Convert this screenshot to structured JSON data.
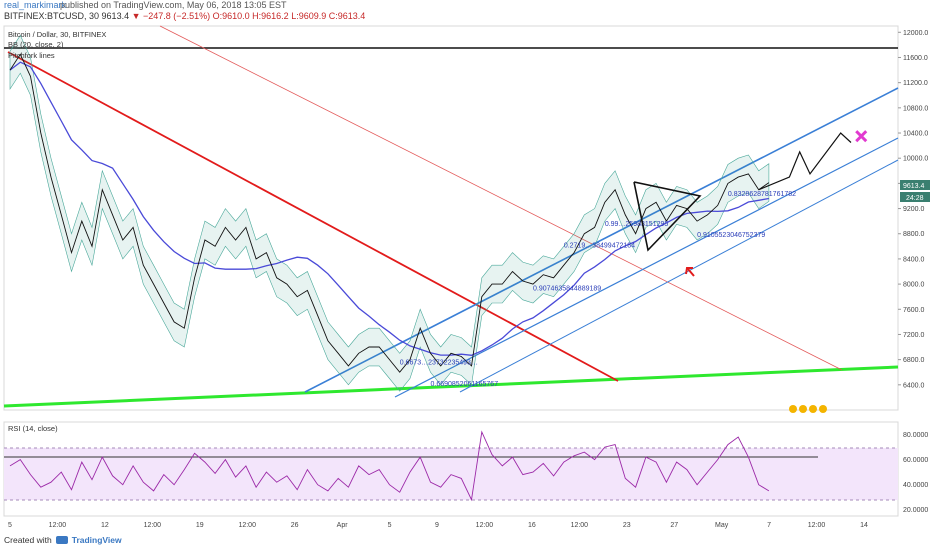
{
  "header": {
    "author": "real_markimark",
    "published": "published on TradingView.com, May 06, 2018 13:05 EST",
    "symbol": "BITFINEX:BTCUSD, 30",
    "last": "9613.4",
    "change": "−247.8 (−2.51%)",
    "open": "O:9610.0",
    "high": "H:9616.2",
    "low": "L:9609.9",
    "close": "C:9613.4"
  },
  "footer": {
    "created_with": "Created with",
    "brand": "TradingView"
  },
  "chart_data": {
    "type": "line",
    "title": "Bitcoin / Dollar, 30, BITFINEX",
    "indicator_bb": "BB (20, close, 2)",
    "indicator_hidden": "Pitchfork lines",
    "price_axis": {
      "ylim": [
        6000,
        12100
      ],
      "ticks": [
        "12000.0",
        "11600.0",
        "11200.0",
        "10800.0",
        "10400.0",
        "10000.0",
        "9600.0",
        "9200.0",
        "8800.0",
        "8400.0",
        "8000.0",
        "7600.0",
        "7200.0",
        "6800.0",
        "6400.0"
      ],
      "tick_values": [
        12000,
        11600,
        11200,
        10800,
        10400,
        10000,
        9600,
        9200,
        8800,
        8400,
        8000,
        7600,
        7200,
        6800,
        6400
      ],
      "current_price_label": "9613.4",
      "countdown_label": "24:28"
    },
    "rsi": {
      "title": "RSI (14, close)",
      "ylim": [
        15,
        90
      ],
      "ticks": [
        "80.0000",
        "60.0000",
        "40.0000",
        "20.0000"
      ],
      "tick_values": [
        80,
        60,
        40,
        20
      ],
      "upper_band": 70,
      "lower_band": 30
    },
    "time_axis": {
      "labels": [
        "5",
        "12:00",
        "12",
        "12:00",
        "19",
        "12:00",
        "26",
        "Apr",
        "5",
        "9",
        "12:00",
        "16",
        "12:00",
        "23",
        "27",
        "May",
        "7",
        "12:00",
        "14"
      ]
    },
    "price_series": [
      {
        "t": 0,
        "v": 11400
      },
      {
        "t": 1,
        "v": 11650
      },
      {
        "t": 2,
        "v": 11300
      },
      {
        "t": 3,
        "v": 10400
      },
      {
        "t": 4,
        "v": 9700
      },
      {
        "t": 5,
        "v": 9100
      },
      {
        "t": 6,
        "v": 8500
      },
      {
        "t": 7,
        "v": 9000
      },
      {
        "t": 8,
        "v": 8600
      },
      {
        "t": 9,
        "v": 9500
      },
      {
        "t": 10,
        "v": 9100
      },
      {
        "t": 11,
        "v": 8700
      },
      {
        "t": 12,
        "v": 8900
      },
      {
        "t": 13,
        "v": 8300
      },
      {
        "t": 14,
        "v": 8000
      },
      {
        "t": 15,
        "v": 7700
      },
      {
        "t": 16,
        "v": 7400
      },
      {
        "t": 17,
        "v": 7300
      },
      {
        "t": 18,
        "v": 8100
      },
      {
        "t": 19,
        "v": 8700
      },
      {
        "t": 20,
        "v": 8600
      },
      {
        "t": 21,
        "v": 8900
      },
      {
        "t": 22,
        "v": 8700
      },
      {
        "t": 23,
        "v": 8900
      },
      {
        "t": 24,
        "v": 8400
      },
      {
        "t": 25,
        "v": 8500
      },
      {
        "t": 26,
        "v": 8100
      },
      {
        "t": 27,
        "v": 8000
      },
      {
        "t": 28,
        "v": 7800
      },
      {
        "t": 29,
        "v": 7900
      },
      {
        "t": 30,
        "v": 7500
      },
      {
        "t": 31,
        "v": 7100
      },
      {
        "t": 32,
        "v": 6900
      },
      {
        "t": 33,
        "v": 6700
      },
      {
        "t": 34,
        "v": 6900
      },
      {
        "t": 35,
        "v": 7000
      },
      {
        "t": 36,
        "v": 7000
      },
      {
        "t": 37,
        "v": 6800
      },
      {
        "t": 38,
        "v": 6600
      },
      {
        "t": 39,
        "v": 6800
      },
      {
        "t": 40,
        "v": 7300
      },
      {
        "t": 41,
        "v": 6900
      },
      {
        "t": 42,
        "v": 6700
      },
      {
        "t": 43,
        "v": 6900
      },
      {
        "t": 44,
        "v": 6850
      },
      {
        "t": 45,
        "v": 6700
      },
      {
        "t": 46,
        "v": 7800
      },
      {
        "t": 47,
        "v": 8000
      },
      {
        "t": 48,
        "v": 8000
      },
      {
        "t": 49,
        "v": 8200
      },
      {
        "t": 50,
        "v": 8050
      },
      {
        "t": 51,
        "v": 8000
      },
      {
        "t": 52,
        "v": 8150
      },
      {
        "t": 53,
        "v": 8100
      },
      {
        "t": 54,
        "v": 8300
      },
      {
        "t": 55,
        "v": 8500
      },
      {
        "t": 56,
        "v": 8800
      },
      {
        "t": 57,
        "v": 8900
      },
      {
        "t": 58,
        "v": 9300
      },
      {
        "t": 59,
        "v": 9500
      },
      {
        "t": 60,
        "v": 9100
      },
      {
        "t": 61,
        "v": 8800
      },
      {
        "t": 62,
        "v": 9200
      },
      {
        "t": 63,
        "v": 9300
      },
      {
        "t": 64,
        "v": 9000
      },
      {
        "t": 65,
        "v": 9250
      },
      {
        "t": 66,
        "v": 9200
      },
      {
        "t": 67,
        "v": 9000
      },
      {
        "t": 68,
        "v": 9100
      },
      {
        "t": 69,
        "v": 9250
      },
      {
        "t": 70,
        "v": 9600
      },
      {
        "t": 71,
        "v": 9700
      },
      {
        "t": 72,
        "v": 9750
      },
      {
        "t": 73,
        "v": 9500
      },
      {
        "t": 74,
        "v": 9613
      }
    ],
    "rsi_series": [
      {
        "t": 0,
        "v": 55
      },
      {
        "t": 1,
        "v": 60
      },
      {
        "t": 2,
        "v": 48
      },
      {
        "t": 3,
        "v": 38
      },
      {
        "t": 4,
        "v": 42
      },
      {
        "t": 5,
        "v": 50
      },
      {
        "t": 6,
        "v": 36
      },
      {
        "t": 7,
        "v": 58
      },
      {
        "t": 8,
        "v": 44
      },
      {
        "t": 9,
        "v": 62
      },
      {
        "t": 10,
        "v": 47
      },
      {
        "t": 11,
        "v": 40
      },
      {
        "t": 12,
        "v": 55
      },
      {
        "t": 13,
        "v": 42
      },
      {
        "t": 14,
        "v": 35
      },
      {
        "t": 15,
        "v": 48
      },
      {
        "t": 16,
        "v": 40
      },
      {
        "t": 17,
        "v": 52
      },
      {
        "t": 18,
        "v": 65
      },
      {
        "t": 19,
        "v": 58
      },
      {
        "t": 20,
        "v": 49
      },
      {
        "t": 21,
        "v": 60
      },
      {
        "t": 22,
        "v": 46
      },
      {
        "t": 23,
        "v": 55
      },
      {
        "t": 24,
        "v": 38
      },
      {
        "t": 25,
        "v": 50
      },
      {
        "t": 26,
        "v": 42
      },
      {
        "t": 27,
        "v": 47
      },
      {
        "t": 28,
        "v": 36
      },
      {
        "t": 29,
        "v": 52
      },
      {
        "t": 30,
        "v": 40
      },
      {
        "t": 31,
        "v": 35
      },
      {
        "t": 32,
        "v": 45
      },
      {
        "t": 33,
        "v": 38
      },
      {
        "t": 34,
        "v": 55
      },
      {
        "t": 35,
        "v": 48
      },
      {
        "t": 36,
        "v": 52
      },
      {
        "t": 37,
        "v": 40
      },
      {
        "t": 38,
        "v": 34
      },
      {
        "t": 39,
        "v": 50
      },
      {
        "t": 40,
        "v": 62
      },
      {
        "t": 41,
        "v": 42
      },
      {
        "t": 42,
        "v": 38
      },
      {
        "t": 43,
        "v": 48
      },
      {
        "t": 44,
        "v": 45
      },
      {
        "t": 45,
        "v": 28
      },
      {
        "t": 46,
        "v": 82
      },
      {
        "t": 47,
        "v": 64
      },
      {
        "t": 48,
        "v": 55
      },
      {
        "t": 49,
        "v": 62
      },
      {
        "t": 50,
        "v": 48
      },
      {
        "t": 51,
        "v": 50
      },
      {
        "t": 52,
        "v": 57
      },
      {
        "t": 53,
        "v": 47
      },
      {
        "t": 54,
        "v": 58
      },
      {
        "t": 55,
        "v": 63
      },
      {
        "t": 56,
        "v": 66
      },
      {
        "t": 57,
        "v": 60
      },
      {
        "t": 58,
        "v": 70
      },
      {
        "t": 59,
        "v": 72
      },
      {
        "t": 60,
        "v": 45
      },
      {
        "t": 61,
        "v": 38
      },
      {
        "t": 62,
        "v": 62
      },
      {
        "t": 63,
        "v": 58
      },
      {
        "t": 64,
        "v": 42
      },
      {
        "t": 65,
        "v": 58
      },
      {
        "t": 66,
        "v": 52
      },
      {
        "t": 67,
        "v": 40
      },
      {
        "t": 68,
        "v": 50
      },
      {
        "t": 69,
        "v": 60
      },
      {
        "t": 70,
        "v": 72
      },
      {
        "t": 71,
        "v": 78
      },
      {
        "t": 72,
        "v": 62
      },
      {
        "t": 73,
        "v": 40
      },
      {
        "t": 74,
        "v": 35
      }
    ],
    "fib_labels": [
      {
        "text": "0.6690852061165767",
        "t": 41,
        "v": 6380
      },
      {
        "text": "0.6673…23732235493…",
        "t": 38,
        "v": 6720
      },
      {
        "text": "0.9074635844889189",
        "t": 51,
        "v": 7900
      },
      {
        "text": "0.2719…38499472184",
        "t": 54,
        "v": 8580
      },
      {
        "text": "0.99…25983151295",
        "t": 58,
        "v": 8920
      },
      {
        "text": "0.8328628781761782",
        "t": 70,
        "v": 9400
      },
      {
        "text": "0.9105523046752379",
        "t": 67,
        "v": 8750
      }
    ],
    "projection": [
      {
        "t": 73,
        "v": 9500
      },
      {
        "t": 76,
        "v": 9700
      },
      {
        "t": 77,
        "v": 10100
      },
      {
        "t": 78,
        "v": 9750
      },
      {
        "t": 81,
        "v": 10400
      },
      {
        "t": 82,
        "v": 10250
      }
    ],
    "target_marker": {
      "t": 83,
      "v": 10350
    }
  }
}
